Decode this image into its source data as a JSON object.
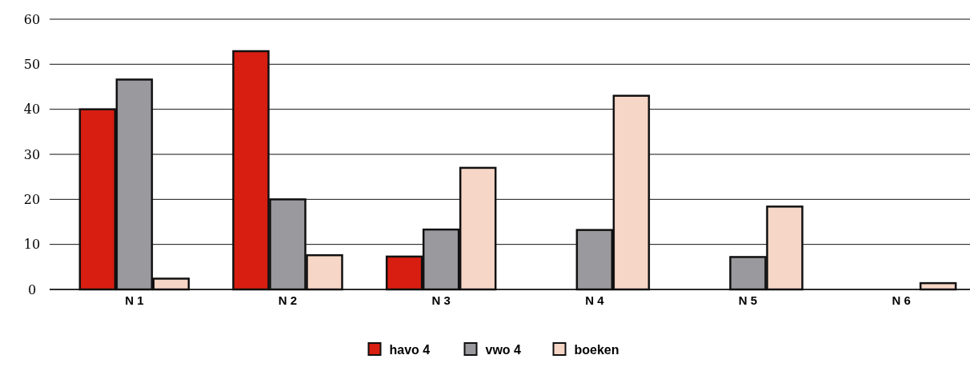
{
  "chart_data": {
    "type": "bar",
    "categories": [
      "N 1",
      "N 2",
      "N 3",
      "N 4",
      "N 5",
      "N 6"
    ],
    "series": [
      {
        "name": "havo 4",
        "color": "#d81e10",
        "values": [
          40,
          52.9,
          7.3,
          null,
          null,
          null
        ]
      },
      {
        "name": "vwo 4",
        "color": "#9a999e",
        "values": [
          46.6,
          20,
          13.3,
          13.2,
          7.2,
          null
        ]
      },
      {
        "name": "boeken",
        "color": "#f6d6c6",
        "values": [
          2.4,
          7.6,
          27,
          43,
          18.4,
          1.4
        ]
      }
    ],
    "ylim": [
      0,
      60
    ],
    "yticks": [
      0,
      10,
      20,
      30,
      40,
      50,
      60
    ],
    "grid": "y",
    "legend": "bottom"
  }
}
